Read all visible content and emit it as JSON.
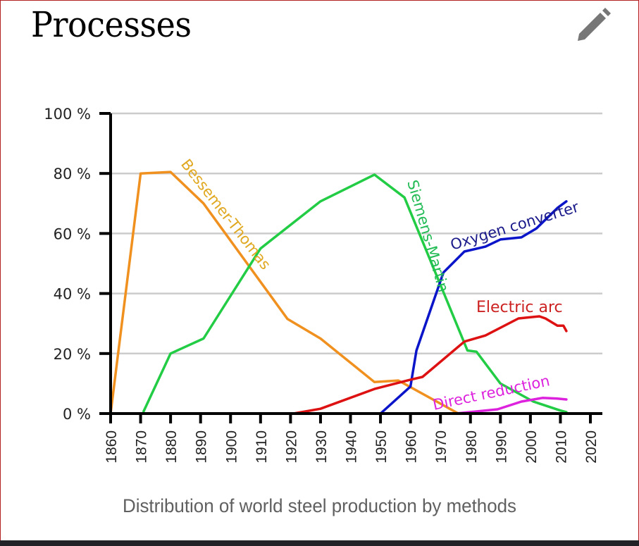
{
  "section": {
    "title": "Processes",
    "edit_icon": "pencil-icon",
    "caption": "Distribution of world steel production by methods"
  },
  "chart_data": {
    "type": "line",
    "title": "",
    "xlabel": "",
    "ylabel": "",
    "xlim": [
      1860,
      2020
    ],
    "ylim": [
      0,
      100
    ],
    "grid": true,
    "x_ticks": [
      "1860",
      "1870",
      "1880",
      "1890",
      "1900",
      "1910",
      "1920",
      "1930",
      "1940",
      "1950",
      "1960",
      "1970",
      "1980",
      "1990",
      "2000",
      "2010",
      "2020"
    ],
    "y_ticks": [
      "0 %",
      "20 %",
      "40 %",
      "60 %",
      "80 %",
      "100 %"
    ],
    "legend": "inline-labels",
    "series": [
      {
        "name": "Bessemer-Thomas",
        "color": "#f0901e",
        "label_color": "#e0a820",
        "points": [
          [
            1860,
            0
          ],
          [
            1870,
            80
          ],
          [
            1880,
            80.5
          ],
          [
            1891,
            70
          ],
          [
            1919,
            31.5
          ],
          [
            1930,
            25
          ],
          [
            1948,
            10.5
          ],
          [
            1956,
            11
          ],
          [
            1976,
            0
          ]
        ]
      },
      {
        "name": "Siemens-Martin",
        "color": "#22cc44",
        "label_color": "#22bb55",
        "points": [
          [
            1871,
            0.7
          ],
          [
            1880,
            20
          ],
          [
            1891,
            25
          ],
          [
            1910,
            55
          ],
          [
            1930,
            70.7
          ],
          [
            1948,
            79.6
          ],
          [
            1958,
            72
          ],
          [
            1979,
            21
          ],
          [
            1982,
            20.6
          ],
          [
            1990,
            10
          ],
          [
            2001,
            4
          ],
          [
            2010,
            1
          ],
          [
            2012,
            0.5
          ]
        ]
      },
      {
        "name": "Oxygen converter",
        "color": "#0a14c8",
        "label_color": "#1a1a8a",
        "points": [
          [
            1950,
            0
          ],
          [
            1960,
            9
          ],
          [
            1962,
            21
          ],
          [
            1971,
            47
          ],
          [
            1978,
            54
          ],
          [
            1985,
            55.6
          ],
          [
            1990,
            58
          ],
          [
            1997,
            58.7
          ],
          [
            2002,
            61.7
          ],
          [
            2009,
            68.5
          ],
          [
            2012,
            70.7
          ]
        ]
      },
      {
        "name": "Electric arc",
        "color": "#dd1111",
        "label_color": "#cc2222",
        "points": [
          [
            1921,
            0
          ],
          [
            1930,
            1.6
          ],
          [
            1948,
            8.2
          ],
          [
            1960,
            11.3
          ],
          [
            1964,
            12.2
          ],
          [
            1978,
            24
          ],
          [
            1985,
            26
          ],
          [
            1996,
            31.7
          ],
          [
            2003,
            32.4
          ],
          [
            2005,
            31.7
          ],
          [
            2009,
            29.3
          ],
          [
            2011,
            29.3
          ],
          [
            2012,
            27.5
          ]
        ]
      },
      {
        "name": "Direct reduction",
        "color": "#dd22dd",
        "label_color": "#dd22dd",
        "points": [
          [
            1975,
            0
          ],
          [
            1989,
            1.4
          ],
          [
            1997,
            4
          ],
          [
            2004,
            5.2
          ],
          [
            2009,
            5
          ],
          [
            2012,
            4.7
          ]
        ]
      }
    ]
  }
}
